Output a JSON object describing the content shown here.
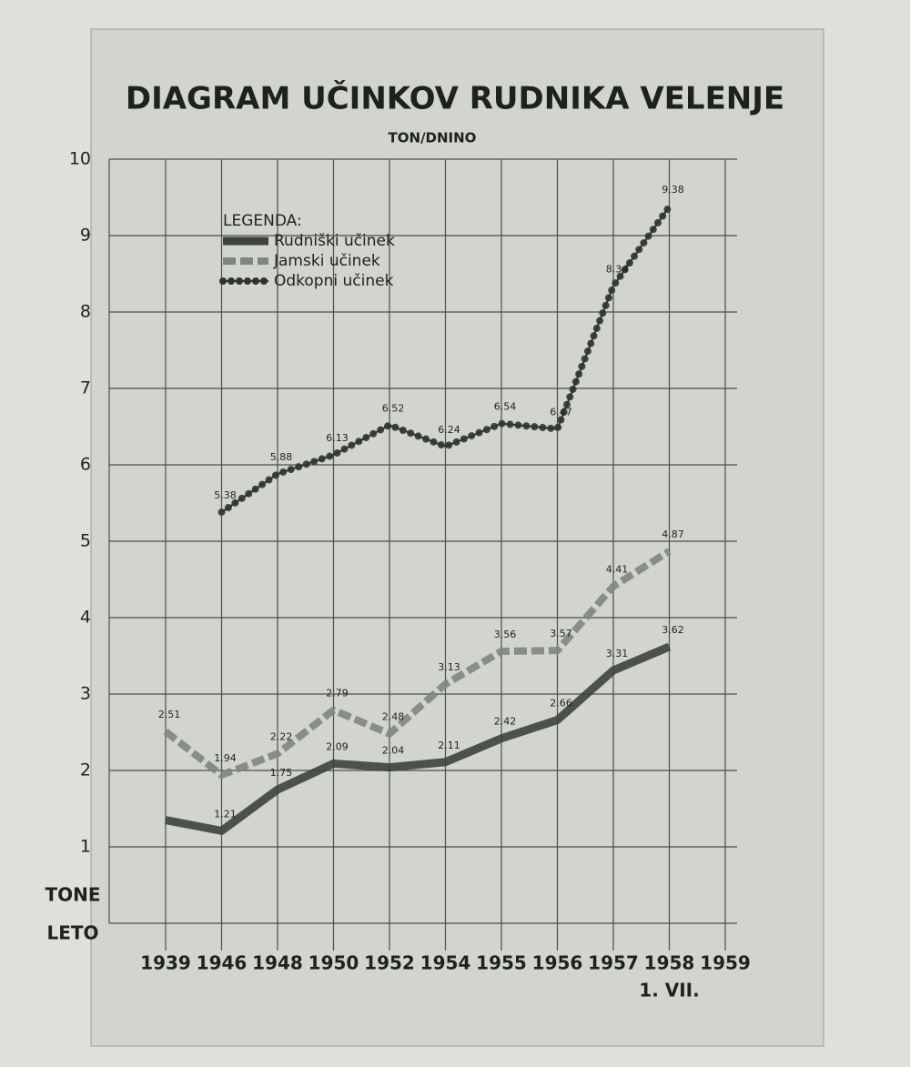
{
  "chart_data": {
    "type": "line",
    "title": "DIAGRAM UČINKOV RUDNIKA VELENJE",
    "subtitle": "TON/DNINO",
    "y_label": "TONE",
    "x_label": "LETO",
    "x_note": "1. VII.",
    "legend_title": "LEGENDA:",
    "legend": "top-left",
    "grid": true,
    "categories": [
      "1939",
      "1946",
      "1948",
      "1950",
      "1952",
      "1954",
      "1955",
      "1956",
      "1957",
      "1958",
      "1959"
    ],
    "ylim": [
      0,
      10
    ],
    "yticks": [
      1,
      2,
      3,
      4,
      5,
      6,
      7,
      8,
      9,
      10
    ],
    "series": [
      {
        "name": "Rudniški učinek",
        "color": "#3d423d",
        "style": "solid",
        "values": [
          1.35,
          1.21,
          1.75,
          2.09,
          2.04,
          2.11,
          2.42,
          2.66,
          3.31,
          3.62,
          null
        ],
        "value_labels": [
          null,
          "1.21",
          "1.75",
          "2.09",
          "2.04",
          "2.11",
          "2.42",
          "2.66",
          "3.31",
          "3.62",
          null
        ]
      },
      {
        "name": "Jamski učinek",
        "color": "#7f857f",
        "style": "dashed",
        "values": [
          2.51,
          1.94,
          2.22,
          2.79,
          2.48,
          3.13,
          3.56,
          3.57,
          4.41,
          4.87,
          null
        ],
        "value_labels": [
          "2.51",
          "1.94",
          "2.22",
          "2.79",
          "2.48",
          "3.13",
          "3.56",
          "3.57",
          "4.41",
          "4.87",
          null
        ]
      },
      {
        "name": "Odkopni učinek",
        "color": "#2f342f",
        "style": "dotted",
        "values": [
          null,
          5.38,
          5.88,
          6.13,
          6.52,
          6.24,
          6.54,
          6.47,
          8.34,
          9.38,
          null
        ],
        "value_labels": [
          null,
          "5.38",
          "5.88",
          "6.13",
          "6.52",
          "6.24",
          "6.54",
          "6.47",
          "8.34",
          "9.38",
          null
        ]
      }
    ]
  }
}
